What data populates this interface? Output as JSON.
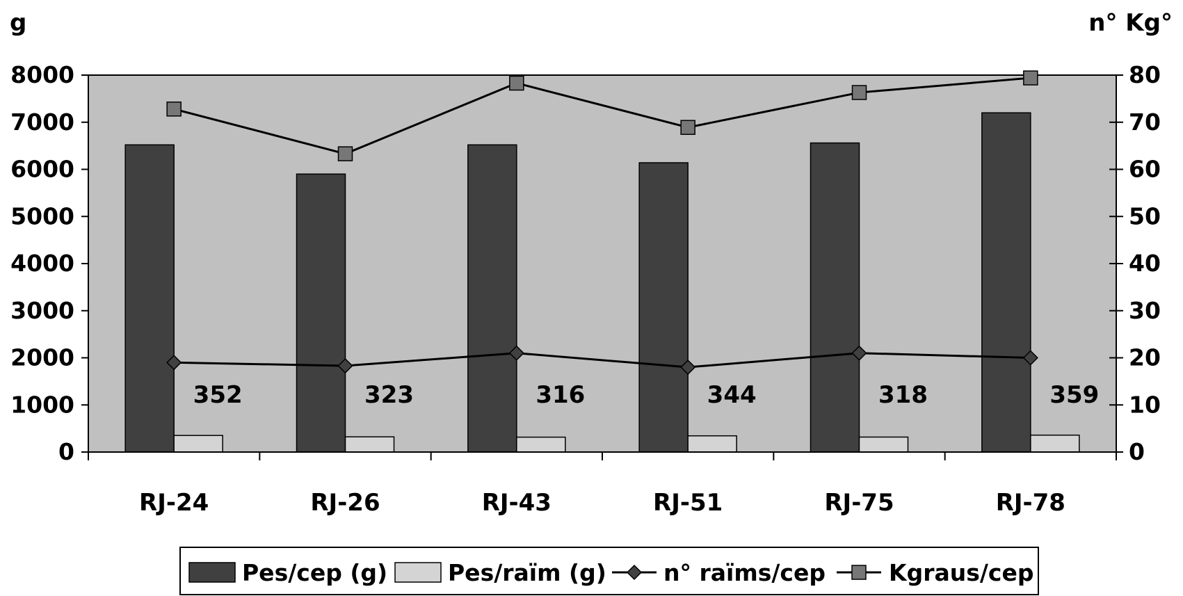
{
  "chart_data": {
    "type": "bar",
    "categories": [
      "RJ-24",
      "RJ-26",
      "RJ-43",
      "RJ-51",
      "RJ-75",
      "RJ-78"
    ],
    "y_left_label": "g",
    "y_right_label": "n° Kg°",
    "ylim_left": [
      0,
      8000
    ],
    "ylim_right": [
      0,
      80
    ],
    "left_ticks": [
      "0",
      "1000",
      "2000",
      "3000",
      "4000",
      "5000",
      "6000",
      "7000",
      "8000"
    ],
    "right_ticks": [
      "0",
      "10",
      "20",
      "30",
      "40",
      "50",
      "60",
      "70",
      "80"
    ],
    "grid": false,
    "legend_position": "bottom",
    "series": [
      {
        "name": "Pes/cep (g)",
        "kind": "bar",
        "axis": "left",
        "color": "#404040",
        "values": [
          6520,
          5900,
          6520,
          6140,
          6560,
          7200
        ]
      },
      {
        "name": "Pes/raïm (g)",
        "kind": "bar",
        "axis": "left",
        "color": "#d4d4d4",
        "values": [
          352,
          323,
          316,
          344,
          318,
          359
        ],
        "data_labels": [
          "352",
          "323",
          "316",
          "344",
          "318",
          "359"
        ]
      },
      {
        "name": "n° raïms/cep",
        "kind": "line",
        "marker": "diamond",
        "axis": "right",
        "color": "#404040",
        "values": [
          19,
          18.3,
          21,
          18,
          21,
          20
        ]
      },
      {
        "name": "Kgraus/cep",
        "kind": "line",
        "marker": "square",
        "axis": "right",
        "color": "#777777",
        "values": [
          72.8,
          63.3,
          78.3,
          68.9,
          76.3,
          79.4
        ]
      }
    ]
  }
}
